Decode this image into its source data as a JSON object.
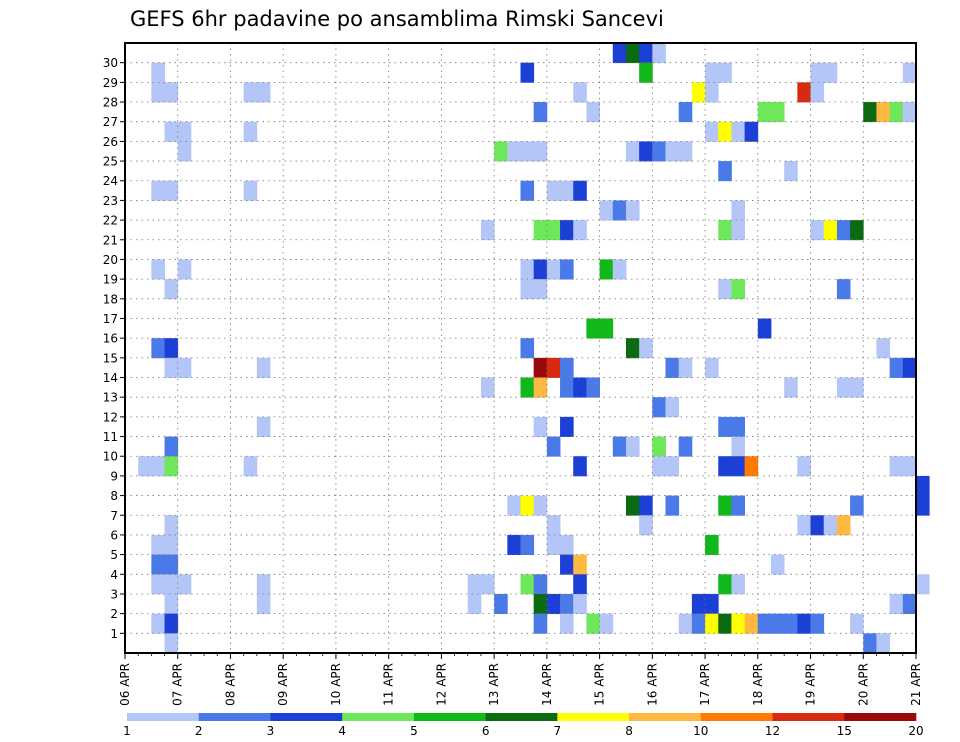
{
  "chart_data": {
    "type": "heatmap",
    "title": "GEFS 6hr padavine po ansamblima Rimski Sancevi",
    "xlabel": "",
    "ylabel": "",
    "x_tick_labels": [
      "06 APR",
      "07 APR",
      "08 APR",
      "09 APR",
      "10 APR",
      "11 APR",
      "12 APR",
      "13 APR",
      "14 APR",
      "15 APR",
      "16 APR",
      "17 APR",
      "18 APR",
      "19 APR",
      "20 APR",
      "21 APR"
    ],
    "y_tick_labels": [
      "1",
      "2",
      "3",
      "4",
      "5",
      "6",
      "7",
      "8",
      "9",
      "10",
      "11",
      "12",
      "13",
      "14",
      "15",
      "16",
      "17",
      "18",
      "19",
      "20",
      "21",
      "22",
      "23",
      "24",
      "25",
      "26",
      "27",
      "28",
      "29",
      "30"
    ],
    "ylim": [
      1,
      30
    ],
    "time_steps": 60,
    "steps_per_day": 4,
    "grid": true,
    "colorbar": {
      "location": "bottom",
      "labels": [
        "1",
        "2",
        "3",
        "4",
        "5",
        "6",
        "7",
        "8",
        "10",
        "12",
        "15",
        "20"
      ],
      "colors": [
        "#b3c6f7",
        "#4a7ae8",
        "#1c3fd6",
        "#6ee85a",
        "#10b81a",
        "#0a6b10",
        "#ffff00",
        "#ffb840",
        "#ff7b00",
        "#d82a10",
        "#9a0a0a"
      ]
    },
    "cells": [
      [
        30,
        37,
        2
      ],
      [
        30,
        38,
        5
      ],
      [
        30,
        39,
        2
      ],
      [
        30,
        40,
        0
      ],
      [
        29,
        2,
        0
      ],
      [
        29,
        30,
        2
      ],
      [
        29,
        39,
        4
      ],
      [
        29,
        44,
        0
      ],
      [
        29,
        45,
        0
      ],
      [
        29,
        52,
        0
      ],
      [
        29,
        53,
        0
      ],
      [
        29,
        59,
        0
      ],
      [
        28,
        2,
        0
      ],
      [
        28,
        3,
        0
      ],
      [
        28,
        9,
        0
      ],
      [
        28,
        10,
        0
      ],
      [
        28,
        34,
        0
      ],
      [
        28,
        43,
        6
      ],
      [
        28,
        44,
        0
      ],
      [
        28,
        51,
        9
      ],
      [
        28,
        52,
        0
      ],
      [
        27,
        31,
        1
      ],
      [
        27,
        35,
        0
      ],
      [
        27,
        42,
        1
      ],
      [
        27,
        48,
        3
      ],
      [
        27,
        49,
        3
      ],
      [
        27,
        56,
        5
      ],
      [
        27,
        57,
        7
      ],
      [
        27,
        58,
        3
      ],
      [
        27,
        59,
        0
      ],
      [
        26,
        3,
        0
      ],
      [
        26,
        4,
        0
      ],
      [
        26,
        9,
        0
      ],
      [
        26,
        44,
        0
      ],
      [
        26,
        45,
        6
      ],
      [
        26,
        46,
        0
      ],
      [
        26,
        47,
        2
      ],
      [
        25,
        4,
        0
      ],
      [
        25,
        28,
        3
      ],
      [
        25,
        29,
        0
      ],
      [
        25,
        30,
        0
      ],
      [
        25,
        31,
        0
      ],
      [
        25,
        38,
        0
      ],
      [
        25,
        39,
        2
      ],
      [
        25,
        40,
        1
      ],
      [
        25,
        41,
        0
      ],
      [
        25,
        42,
        0
      ],
      [
        24,
        45,
        1
      ],
      [
        24,
        50,
        0
      ],
      [
        23,
        2,
        0
      ],
      [
        23,
        3,
        0
      ],
      [
        23,
        9,
        0
      ],
      [
        23,
        30,
        1
      ],
      [
        23,
        32,
        0
      ],
      [
        23,
        33,
        0
      ],
      [
        23,
        34,
        2
      ],
      [
        22,
        36,
        0
      ],
      [
        22,
        37,
        1
      ],
      [
        22,
        38,
        0
      ],
      [
        22,
        46,
        0
      ],
      [
        21,
        27,
        0
      ],
      [
        21,
        31,
        3
      ],
      [
        21,
        32,
        3
      ],
      [
        21,
        33,
        2
      ],
      [
        21,
        34,
        0
      ],
      [
        21,
        45,
        3
      ],
      [
        21,
        46,
        0
      ],
      [
        21,
        52,
        0
      ],
      [
        21,
        53,
        6
      ],
      [
        21,
        54,
        1
      ],
      [
        21,
        55,
        5
      ],
      [
        19,
        2,
        0
      ],
      [
        19,
        4,
        0
      ],
      [
        19,
        30,
        0
      ],
      [
        19,
        31,
        2
      ],
      [
        19,
        32,
        0
      ],
      [
        19,
        33,
        1
      ],
      [
        19,
        36,
        4
      ],
      [
        19,
        37,
        0
      ],
      [
        18,
        3,
        0
      ],
      [
        18,
        30,
        0
      ],
      [
        18,
        31,
        0
      ],
      [
        18,
        45,
        0
      ],
      [
        18,
        46,
        3
      ],
      [
        18,
        54,
        1
      ],
      [
        16,
        35,
        4
      ],
      [
        16,
        36,
        4
      ],
      [
        16,
        48,
        2
      ],
      [
        15,
        2,
        1
      ],
      [
        15,
        3,
        2
      ],
      [
        15,
        30,
        1
      ],
      [
        15,
        38,
        5
      ],
      [
        15,
        39,
        0
      ],
      [
        15,
        57,
        0
      ],
      [
        14,
        3,
        0
      ],
      [
        14,
        4,
        0
      ],
      [
        14,
        10,
        0
      ],
      [
        14,
        31,
        10
      ],
      [
        14,
        32,
        9
      ],
      [
        14,
        33,
        1
      ],
      [
        14,
        41,
        1
      ],
      [
        14,
        42,
        0
      ],
      [
        14,
        44,
        0
      ],
      [
        14,
        58,
        1
      ],
      [
        14,
        59,
        2
      ],
      [
        13,
        27,
        0
      ],
      [
        13,
        30,
        4
      ],
      [
        13,
        31,
        7
      ],
      [
        13,
        33,
        1
      ],
      [
        13,
        34,
        2
      ],
      [
        13,
        35,
        1
      ],
      [
        13,
        50,
        0
      ],
      [
        13,
        54,
        0
      ],
      [
        13,
        55,
        0
      ],
      [
        12,
        40,
        1
      ],
      [
        12,
        41,
        0
      ],
      [
        11,
        10,
        0
      ],
      [
        11,
        31,
        0
      ],
      [
        11,
        33,
        2
      ],
      [
        11,
        45,
        1
      ],
      [
        11,
        46,
        1
      ],
      [
        10,
        3,
        1
      ],
      [
        10,
        32,
        1
      ],
      [
        10,
        37,
        1
      ],
      [
        10,
        38,
        0
      ],
      [
        10,
        40,
        3
      ],
      [
        10,
        42,
        1
      ],
      [
        10,
        46,
        0
      ],
      [
        9,
        1,
        0
      ],
      [
        9,
        2,
        0
      ],
      [
        9,
        3,
        3
      ],
      [
        9,
        9,
        0
      ],
      [
        9,
        34,
        2
      ],
      [
        9,
        40,
        0
      ],
      [
        9,
        41,
        0
      ],
      [
        9,
        45,
        2
      ],
      [
        9,
        46,
        2
      ],
      [
        9,
        47,
        8
      ],
      [
        9,
        51,
        0
      ],
      [
        9,
        58,
        0
      ],
      [
        9,
        59,
        0
      ],
      [
        8,
        60,
        2
      ],
      [
        7,
        29,
        0
      ],
      [
        7,
        30,
        6
      ],
      [
        7,
        31,
        0
      ],
      [
        7,
        38,
        5
      ],
      [
        7,
        39,
        2
      ],
      [
        7,
        41,
        1
      ],
      [
        7,
        45,
        4
      ],
      [
        7,
        46,
        1
      ],
      [
        7,
        55,
        1
      ],
      [
        7,
        60,
        2
      ],
      [
        6,
        3,
        0
      ],
      [
        6,
        32,
        0
      ],
      [
        6,
        39,
        0
      ],
      [
        6,
        51,
        0
      ],
      [
        6,
        52,
        2
      ],
      [
        6,
        53,
        0
      ],
      [
        6,
        54,
        7
      ],
      [
        5,
        2,
        0
      ],
      [
        5,
        3,
        0
      ],
      [
        5,
        29,
        2
      ],
      [
        5,
        30,
        1
      ],
      [
        5,
        32,
        0
      ],
      [
        5,
        33,
        0
      ],
      [
        5,
        44,
        4
      ],
      [
        4,
        2,
        1
      ],
      [
        4,
        3,
        1
      ],
      [
        4,
        33,
        2
      ],
      [
        4,
        34,
        7
      ],
      [
        4,
        49,
        0
      ],
      [
        3,
        2,
        0
      ],
      [
        3,
        3,
        0
      ],
      [
        3,
        4,
        0
      ],
      [
        3,
        10,
        0
      ],
      [
        3,
        26,
        0
      ],
      [
        3,
        27,
        0
      ],
      [
        3,
        30,
        3
      ],
      [
        3,
        31,
        1
      ],
      [
        3,
        34,
        2
      ],
      [
        3,
        45,
        4
      ],
      [
        3,
        46,
        0
      ],
      [
        3,
        60,
        0
      ],
      [
        2,
        3,
        0
      ],
      [
        2,
        10,
        0
      ],
      [
        2,
        26,
        0
      ],
      [
        2,
        28,
        1
      ],
      [
        2,
        31,
        5
      ],
      [
        2,
        32,
        2
      ],
      [
        2,
        33,
        1
      ],
      [
        2,
        34,
        0
      ],
      [
        2,
        43,
        2
      ],
      [
        2,
        44,
        2
      ],
      [
        2,
        58,
        0
      ],
      [
        2,
        59,
        1
      ],
      [
        1,
        2,
        0
      ],
      [
        1,
        3,
        2
      ],
      [
        1,
        31,
        1
      ],
      [
        1,
        33,
        0
      ],
      [
        1,
        35,
        3
      ],
      [
        1,
        36,
        0
      ],
      [
        1,
        42,
        0
      ],
      [
        1,
        43,
        1
      ],
      [
        1,
        44,
        6
      ],
      [
        1,
        45,
        5
      ],
      [
        1,
        46,
        6
      ],
      [
        1,
        47,
        7
      ],
      [
        1,
        48,
        1
      ],
      [
        1,
        49,
        1
      ],
      [
        1,
        50,
        1
      ],
      [
        1,
        51,
        2
      ],
      [
        1,
        52,
        1
      ],
      [
        1,
        55,
        0
      ],
      [
        0,
        3,
        0
      ],
      [
        0,
        56,
        1
      ],
      [
        0,
        57,
        0
      ]
    ]
  }
}
